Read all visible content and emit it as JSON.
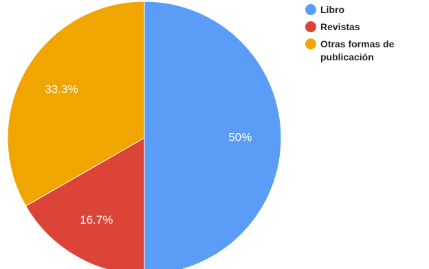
{
  "chart_data": {
    "type": "pie",
    "categories": [
      "Libro",
      "Revistas",
      "Otras formas de publicación"
    ],
    "values": [
      50,
      16.7,
      33.3
    ],
    "data_labels": [
      "50%",
      "16.7%",
      "33.3%"
    ],
    "colors": [
      "#5b9cf7",
      "#dc4437",
      "#f1a500"
    ],
    "legend_position": "right"
  }
}
